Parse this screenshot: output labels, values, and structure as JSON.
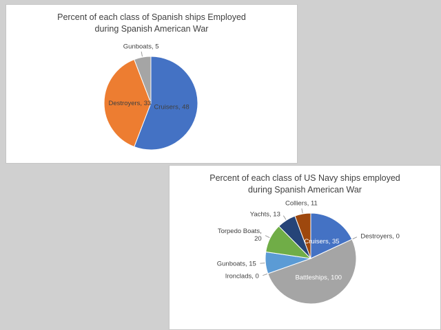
{
  "page": {
    "background_color": "#d0d0d0",
    "panel_color": "#ffffff"
  },
  "chart_data": [
    {
      "name": "spanish-ships-pie",
      "type": "pie",
      "title": "Percent of each class of Spanish ships Employed\nduring Spanish American War",
      "categories": [
        "Cruisers",
        "Destroyers",
        "Gunboats"
      ],
      "values": [
        48,
        33,
        5
      ],
      "colors": [
        "#4472c4",
        "#ed7d31",
        "#a5a5a5"
      ],
      "data_labels": [
        "Cruisers, 48",
        "Destroyers, 33",
        "Gunboats, 5"
      ],
      "label_placement": [
        "inside",
        "inside",
        "outside"
      ],
      "inside_label_color": "#404040",
      "outside_label_color": "#404040",
      "start_angle": "12-o-clock",
      "direction": "clockwise",
      "legend": "none"
    },
    {
      "name": "us-navy-ships-pie",
      "type": "pie",
      "title": "Percent of each class of US Navy ships employed\nduring Spanish American War",
      "categories": [
        "Cruisers",
        "Destroyers",
        "Battleships",
        "Ironclads",
        "Gunboats",
        "Torpedo Boats",
        "Yachts",
        "Colliers"
      ],
      "values": [
        35,
        0,
        100,
        0,
        15,
        20,
        13,
        11
      ],
      "colors": [
        "#4472c4",
        "#ed7d31",
        "#a5a5a5",
        "#ffc000",
        "#5b9bd5",
        "#70ad47",
        "#264478",
        "#9e480e"
      ],
      "data_labels": [
        "Cruisers, 35",
        "Destroyers, 0",
        "Battleships, 100",
        "Ironclads, 0",
        "Gunboats, 15",
        "Torpedo Boats,\n20",
        "Yachts, 13",
        "Colliers, 11"
      ],
      "label_placement": [
        "inside",
        "outside",
        "inside",
        "outside",
        "outside",
        "outside",
        "outside",
        "outside"
      ],
      "inside_label_color": "#ffffff",
      "outside_label_color": "#404040",
      "start_angle": "12-o-clock",
      "direction": "clockwise",
      "legend": "none"
    }
  ]
}
